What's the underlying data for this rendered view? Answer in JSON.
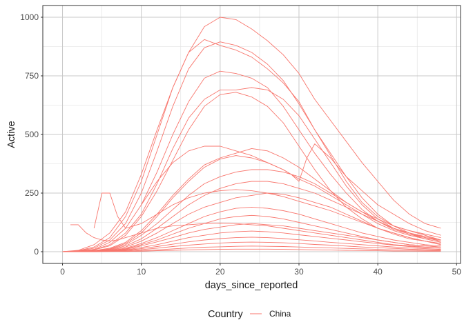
{
  "chart_data": {
    "type": "line",
    "xlabel": "days_since_reported",
    "ylabel": "Active",
    "xlim": [
      -2.5,
      50.5
    ],
    "ylim": [
      -50,
      1050
    ],
    "x_ticks": [
      0,
      10,
      20,
      30,
      40,
      50
    ],
    "y_ticks": [
      0,
      250,
      500,
      750,
      1000
    ],
    "grid": true,
    "legend": {
      "title": "Country",
      "position": "bottom",
      "entries": [
        "China"
      ]
    },
    "series_color": "#F8766D",
    "series": [
      {
        "x": [
          0,
          2,
          4,
          6,
          8,
          10,
          12,
          14,
          16,
          18,
          20,
          22,
          24,
          26,
          28,
          30,
          32,
          34,
          36,
          38,
          40,
          42,
          44,
          46,
          48
        ],
        "values": [
          0,
          6,
          30,
          80,
          170,
          330,
          520,
          700,
          850,
          960,
          1000,
          990,
          950,
          900,
          840,
          760,
          650,
          560,
          470,
          380,
          300,
          220,
          160,
          120,
          100
        ]
      },
      {
        "x": [
          0,
          2,
          4,
          6,
          8,
          10,
          12,
          14,
          16,
          18,
          20,
          22,
          24,
          26,
          28,
          30,
          32,
          34,
          36,
          38,
          40,
          42,
          44,
          46,
          48
        ],
        "values": [
          0,
          4,
          20,
          60,
          150,
          300,
          500,
          700,
          850,
          905,
          880,
          860,
          830,
          780,
          720,
          640,
          520,
          420,
          320,
          230,
          160,
          110,
          80,
          60,
          45
        ]
      },
      {
        "x": [
          0,
          2,
          4,
          6,
          8,
          10,
          12,
          14,
          16,
          18,
          20,
          22,
          24,
          26,
          28,
          30,
          32,
          34,
          36,
          38,
          40,
          42,
          44,
          46,
          48
        ],
        "values": [
          0,
          3,
          15,
          50,
          120,
          250,
          430,
          620,
          780,
          870,
          895,
          880,
          850,
          800,
          730,
          630,
          520,
          410,
          300,
          210,
          150,
          110,
          90,
          75,
          60
        ]
      },
      {
        "x": [
          0,
          2,
          4,
          6,
          8,
          10,
          12,
          14,
          16,
          18,
          20,
          22,
          24,
          26,
          28,
          30,
          32,
          34,
          36,
          38,
          40,
          42,
          44,
          46,
          48
        ],
        "values": [
          0,
          2,
          10,
          40,
          100,
          200,
          340,
          500,
          640,
          740,
          770,
          760,
          740,
          700,
          620,
          520,
          420,
          330,
          250,
          180,
          130,
          95,
          75,
          60,
          50
        ]
      },
      {
        "x": [
          0,
          2,
          4,
          6,
          8,
          10,
          12,
          14,
          16,
          18,
          20,
          22,
          24,
          26,
          28,
          30,
          32,
          34,
          36,
          38,
          40,
          42,
          44,
          46,
          48
        ],
        "values": [
          0,
          2,
          8,
          30,
          80,
          160,
          290,
          440,
          570,
          650,
          690,
          690,
          700,
          690,
          650,
          580,
          480,
          380,
          280,
          200,
          140,
          100,
          75,
          55,
          40
        ]
      },
      {
        "x": [
          0,
          2,
          4,
          6,
          8,
          10,
          12,
          14,
          16,
          18,
          20,
          22,
          24,
          26,
          28,
          30,
          32,
          34,
          36,
          38,
          40,
          42,
          44,
          46,
          48
        ],
        "values": [
          0,
          2,
          8,
          25,
          70,
          150,
          260,
          390,
          520,
          620,
          670,
          680,
          660,
          620,
          550,
          450,
          350,
          260,
          190,
          140,
          100,
          75,
          55,
          45,
          35
        ]
      },
      {
        "x": [
          0,
          2,
          4,
          6,
          8,
          10,
          12,
          14,
          16,
          18,
          20,
          22,
          24,
          26,
          28,
          30,
          32,
          34,
          36,
          38,
          40,
          42,
          44,
          46,
          48
        ],
        "values": [
          0,
          1,
          5,
          15,
          40,
          90,
          160,
          240,
          310,
          370,
          400,
          420,
          440,
          430,
          400,
          360,
          310,
          260,
          210,
          170,
          130,
          100,
          80,
          65,
          50
        ]
      },
      {
        "x": [
          0,
          2,
          4,
          6,
          8,
          10,
          12,
          14,
          16,
          18,
          20,
          22,
          24,
          26,
          28,
          30,
          32,
          34,
          36,
          38,
          40,
          42,
          44,
          46,
          48
        ],
        "values": [
          0,
          1,
          4,
          12,
          35,
          80,
          150,
          230,
          300,
          360,
          395,
          410,
          400,
          380,
          350,
          310,
          280,
          240,
          200,
          160,
          120,
          90,
          70,
          55,
          40
        ]
      },
      {
        "x": [
          0,
          2,
          4,
          6,
          8,
          10,
          12,
          14,
          16,
          18,
          20,
          22,
          24,
          26,
          28,
          30,
          32,
          34,
          36,
          38,
          40,
          42,
          44,
          46,
          48
        ],
        "values": [
          0,
          1,
          3,
          10,
          30,
          70,
          120,
          180,
          240,
          290,
          320,
          340,
          350,
          350,
          340,
          320,
          290,
          250,
          210,
          170,
          140,
          110,
          90,
          70,
          50
        ]
      },
      {
        "x": [
          0,
          2,
          4,
          6,
          8,
          10,
          12,
          14,
          16,
          18,
          20,
          22,
          24,
          26,
          28,
          30,
          32,
          34,
          36,
          38,
          40,
          42,
          44,
          46,
          48
        ],
        "values": [
          0,
          1,
          3,
          8,
          25,
          55,
          100,
          150,
          200,
          240,
          270,
          290,
          300,
          300,
          290,
          270,
          250,
          220,
          190,
          160,
          130,
          100,
          80,
          60,
          45
        ]
      },
      {
        "x": [
          0,
          2,
          4,
          6,
          8,
          10,
          12,
          14,
          16,
          18,
          20,
          22,
          24,
          26,
          28,
          30,
          32,
          34,
          36,
          38,
          40,
          42,
          44,
          46,
          48
        ],
        "values": [
          0,
          1,
          2,
          6,
          20,
          45,
          80,
          120,
          160,
          190,
          210,
          230,
          240,
          250,
          245,
          230,
          210,
          190,
          160,
          130,
          100,
          80,
          60,
          45,
          35
        ]
      },
      {
        "x": [
          0,
          2,
          4,
          6,
          8,
          10,
          12,
          14,
          16,
          18,
          20,
          22,
          24,
          26,
          28,
          30,
          32,
          34,
          36,
          38,
          40,
          42,
          44,
          46,
          48
        ],
        "values": [
          0,
          1,
          2,
          5,
          15,
          35,
          60,
          90,
          120,
          150,
          170,
          185,
          190,
          185,
          175,
          160,
          140,
          120,
          100,
          80,
          65,
          50,
          40,
          30,
          25
        ]
      },
      {
        "x": [
          0,
          2,
          4,
          6,
          8,
          10,
          12,
          14,
          16,
          18,
          20,
          22,
          24,
          26,
          28,
          30,
          32,
          34,
          36,
          38,
          40,
          42,
          44,
          46,
          48
        ],
        "values": [
          0,
          1,
          2,
          4,
          12,
          30,
          50,
          75,
          100,
          120,
          140,
          150,
          155,
          150,
          140,
          125,
          110,
          95,
          80,
          65,
          50,
          40,
          30,
          25,
          20
        ]
      },
      {
        "x": [
          0,
          2,
          4,
          6,
          8,
          10,
          12,
          14,
          16,
          18,
          20,
          22,
          24,
          26,
          28,
          30,
          32,
          34,
          36,
          38,
          40,
          42,
          44,
          46,
          48
        ],
        "values": [
          0,
          1,
          2,
          4,
          10,
          25,
          42,
          60,
          80,
          95,
          105,
          115,
          120,
          115,
          110,
          100,
          90,
          80,
          70,
          60,
          50,
          40,
          30,
          25,
          20
        ]
      },
      {
        "x": [
          0,
          2,
          4,
          6,
          8,
          10,
          12,
          14,
          16,
          18,
          20,
          22,
          24,
          26,
          28,
          30,
          32,
          34,
          36,
          38,
          40,
          42,
          44,
          46,
          48
        ],
        "values": [
          0,
          1,
          1,
          3,
          8,
          18,
          30,
          45,
          60,
          70,
          80,
          85,
          88,
          85,
          80,
          72,
          65,
          57,
          50,
          42,
          35,
          28,
          22,
          18,
          15
        ]
      },
      {
        "x": [
          0,
          2,
          4,
          6,
          8,
          10,
          12,
          14,
          16,
          18,
          20,
          22,
          24,
          26,
          28,
          30,
          32,
          34,
          36,
          38,
          40,
          42,
          44,
          46,
          48
        ],
        "values": [
          0,
          1,
          1,
          2,
          6,
          13,
          22,
          32,
          42,
          50,
          56,
          60,
          62,
          60,
          56,
          51,
          46,
          40,
          35,
          30,
          25,
          20,
          16,
          13,
          10
        ]
      },
      {
        "x": [
          0,
          2,
          4,
          6,
          8,
          10,
          12,
          14,
          16,
          18,
          20,
          22,
          24,
          26,
          28,
          30,
          32,
          34,
          36,
          38,
          40,
          42,
          44,
          46,
          48
        ],
        "values": [
          0,
          0,
          1,
          2,
          4,
          9,
          15,
          22,
          28,
          33,
          37,
          40,
          41,
          40,
          38,
          35,
          31,
          28,
          24,
          20,
          17,
          14,
          11,
          9,
          7
        ]
      },
      {
        "x": [
          0,
          2,
          4,
          6,
          8,
          10,
          12,
          14,
          16,
          18,
          20,
          22,
          24,
          26,
          28,
          30,
          32,
          34,
          36,
          38,
          40,
          42,
          44,
          46,
          48
        ],
        "values": [
          0,
          0,
          1,
          1,
          2,
          5,
          8,
          12,
          16,
          19,
          21,
          23,
          24,
          23,
          22,
          20,
          18,
          16,
          14,
          12,
          10,
          8,
          7,
          5,
          4
        ]
      },
      {
        "x": [
          0,
          2,
          4,
          6,
          8,
          10,
          12,
          14,
          16,
          18,
          20,
          22,
          24,
          26,
          28,
          30,
          32,
          34,
          36,
          38,
          40,
          42,
          44,
          46,
          48
        ],
        "values": [
          0,
          0,
          0,
          1,
          1,
          2,
          4,
          6,
          8,
          9,
          10,
          11,
          11,
          11,
          10,
          9,
          8,
          7,
          6,
          5,
          4,
          3,
          3,
          2,
          2
        ]
      },
      {
        "x": [
          1,
          2,
          3,
          4,
          5,
          6,
          7,
          8,
          9,
          10,
          12,
          14,
          16,
          18,
          20,
          22,
          24,
          26,
          28,
          30,
          32,
          34,
          36,
          38,
          40,
          42,
          44,
          46,
          48
        ],
        "values": [
          115,
          115,
          80,
          60,
          50,
          45,
          50,
          60,
          70,
          80,
          100,
          110,
          115,
          120,
          122,
          120,
          115,
          110,
          100,
          90,
          80,
          70,
          60,
          50,
          40,
          30,
          25,
          20,
          15
        ]
      },
      {
        "x": [
          4,
          5,
          6,
          7,
          8,
          10,
          12,
          14,
          16,
          18,
          20,
          22,
          24,
          26,
          28,
          30,
          32,
          34,
          36,
          38,
          40,
          42,
          44,
          46,
          48
        ],
        "values": [
          100,
          250,
          250,
          150,
          100,
          120,
          160,
          200,
          230,
          250,
          260,
          265,
          260,
          250,
          235,
          215,
          195,
          175,
          150,
          125,
          100,
          80,
          60,
          45,
          30
        ]
      },
      {
        "x": [
          10,
          12,
          14,
          16,
          18,
          20,
          22,
          24,
          26,
          28,
          29,
          30,
          31,
          32,
          34,
          36,
          38,
          40,
          42,
          44,
          46,
          48
        ],
        "values": [
          200,
          300,
          380,
          430,
          450,
          450,
          430,
          410,
          380,
          350,
          330,
          300,
          400,
          460,
          400,
          320,
          260,
          200,
          160,
          120,
          90,
          70
        ]
      }
    ]
  }
}
